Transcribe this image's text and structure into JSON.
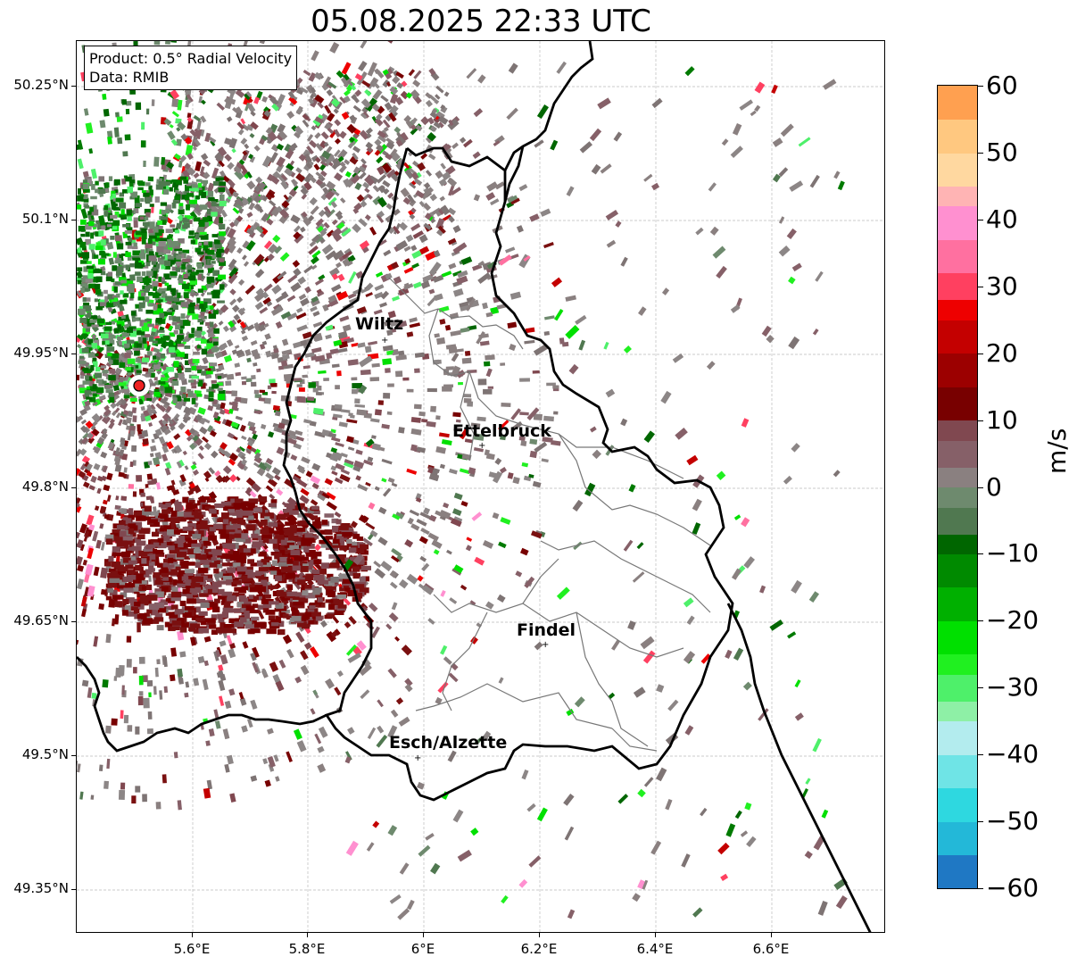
{
  "title": "05.08.2025 22:33 UTC",
  "info": {
    "product": "Product: 0.5° Radial Velocity",
    "data": "Data: RMIB"
  },
  "lat_labels": [
    "50.25°N",
    "50.1°N",
    "49.95°N",
    "49.8°N",
    "49.65°N",
    "49.5°N",
    "49.35°N"
  ],
  "lon_labels": [
    "5.6°E",
    "5.8°E",
    "6°E",
    "6.2°E",
    "6.4°E",
    "6.6°E"
  ],
  "colorbar": {
    "unit": "m/s",
    "min": -60,
    "max": 60,
    "ticks": [
      "60",
      "50",
      "40",
      "30",
      "20",
      "10",
      "0",
      "−10",
      "−20",
      "−30",
      "−40",
      "−50",
      "−60"
    ],
    "bands": [
      {
        "from": -60,
        "to": -55,
        "color": "#1f78c4"
      },
      {
        "from": -55,
        "to": -50,
        "color": "#23b8d8"
      },
      {
        "from": -50,
        "to": -45,
        "color": "#2ed8e0"
      },
      {
        "from": -45,
        "to": -40,
        "color": "#6fe4e6"
      },
      {
        "from": -40,
        "to": -35,
        "color": "#b3ecee"
      },
      {
        "from": -35,
        "to": -32,
        "color": "#8ef0a6"
      },
      {
        "from": -32,
        "to": -28,
        "color": "#4ef06a"
      },
      {
        "from": -28,
        "to": -25,
        "color": "#20f020"
      },
      {
        "from": -25,
        "to": -20,
        "color": "#00e000"
      },
      {
        "from": -20,
        "to": -15,
        "color": "#00b000"
      },
      {
        "from": -15,
        "to": -10,
        "color": "#008a00"
      },
      {
        "from": -10,
        "to": -7,
        "color": "#006600"
      },
      {
        "from": -7,
        "to": -3,
        "color": "#507850"
      },
      {
        "from": -3,
        "to": 0,
        "color": "#6e8a6e"
      },
      {
        "from": 0,
        "to": 3,
        "color": "#8a8080"
      },
      {
        "from": 3,
        "to": 7,
        "color": "#866068"
      },
      {
        "from": 7,
        "to": 10,
        "color": "#804850"
      },
      {
        "from": 10,
        "to": 15,
        "color": "#780000"
      },
      {
        "from": 15,
        "to": 20,
        "color": "#9c0000"
      },
      {
        "from": 20,
        "to": 25,
        "color": "#c40000"
      },
      {
        "from": 25,
        "to": 28,
        "color": "#ee0000"
      },
      {
        "from": 28,
        "to": 32,
        "color": "#ff4060"
      },
      {
        "from": 32,
        "to": 37,
        "color": "#ff70a0"
      },
      {
        "from": 37,
        "to": 42,
        "color": "#ff90d0"
      },
      {
        "from": 42,
        "to": 45,
        "color": "#ffb4b4"
      },
      {
        "from": 45,
        "to": 50,
        "color": "#ffd8a0"
      },
      {
        "from": 50,
        "to": 55,
        "color": "#ffc880"
      },
      {
        "from": 55,
        "to": 60,
        "color": "#ffa050"
      }
    ]
  },
  "radar_site_color": "#ee2222",
  "cities": [
    {
      "name": "Wiltz"
    },
    {
      "name": "Ettelbruck"
    },
    {
      "name": "Findel"
    },
    {
      "name": "Esch/Alzette"
    }
  ]
}
